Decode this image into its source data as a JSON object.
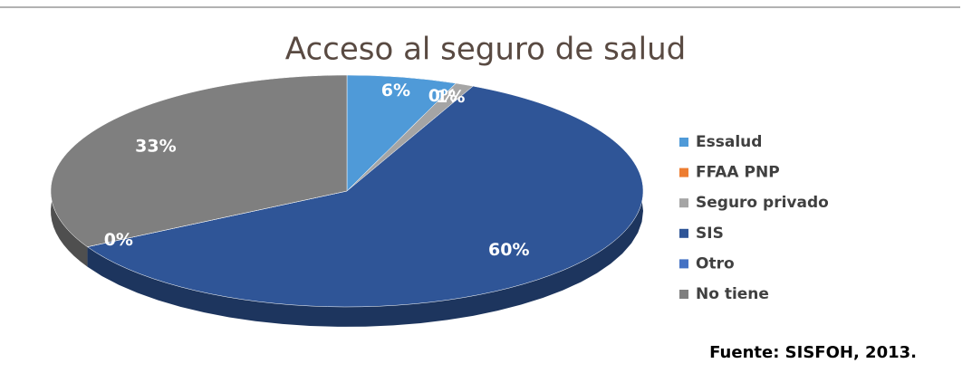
{
  "chart_data": {
    "type": "pie",
    "title": "Acceso al seguro de salud",
    "categories": [
      "Essalud",
      "FFAA PNP",
      "Seguro privado",
      "SIS",
      "Otro",
      "No tiene"
    ],
    "values": [
      6,
      0,
      1,
      60,
      0,
      33
    ],
    "value_labels": [
      "6%",
      "0%",
      "1%",
      "60%",
      "0%",
      "33%"
    ],
    "colors": [
      "#4f9ad8",
      "#ed7d31",
      "#a5a5a5",
      "#2f5597",
      "#4472c4",
      "#7f7f7f"
    ],
    "legend": "right",
    "source": "Fuente: SISFOH, 2013."
  }
}
